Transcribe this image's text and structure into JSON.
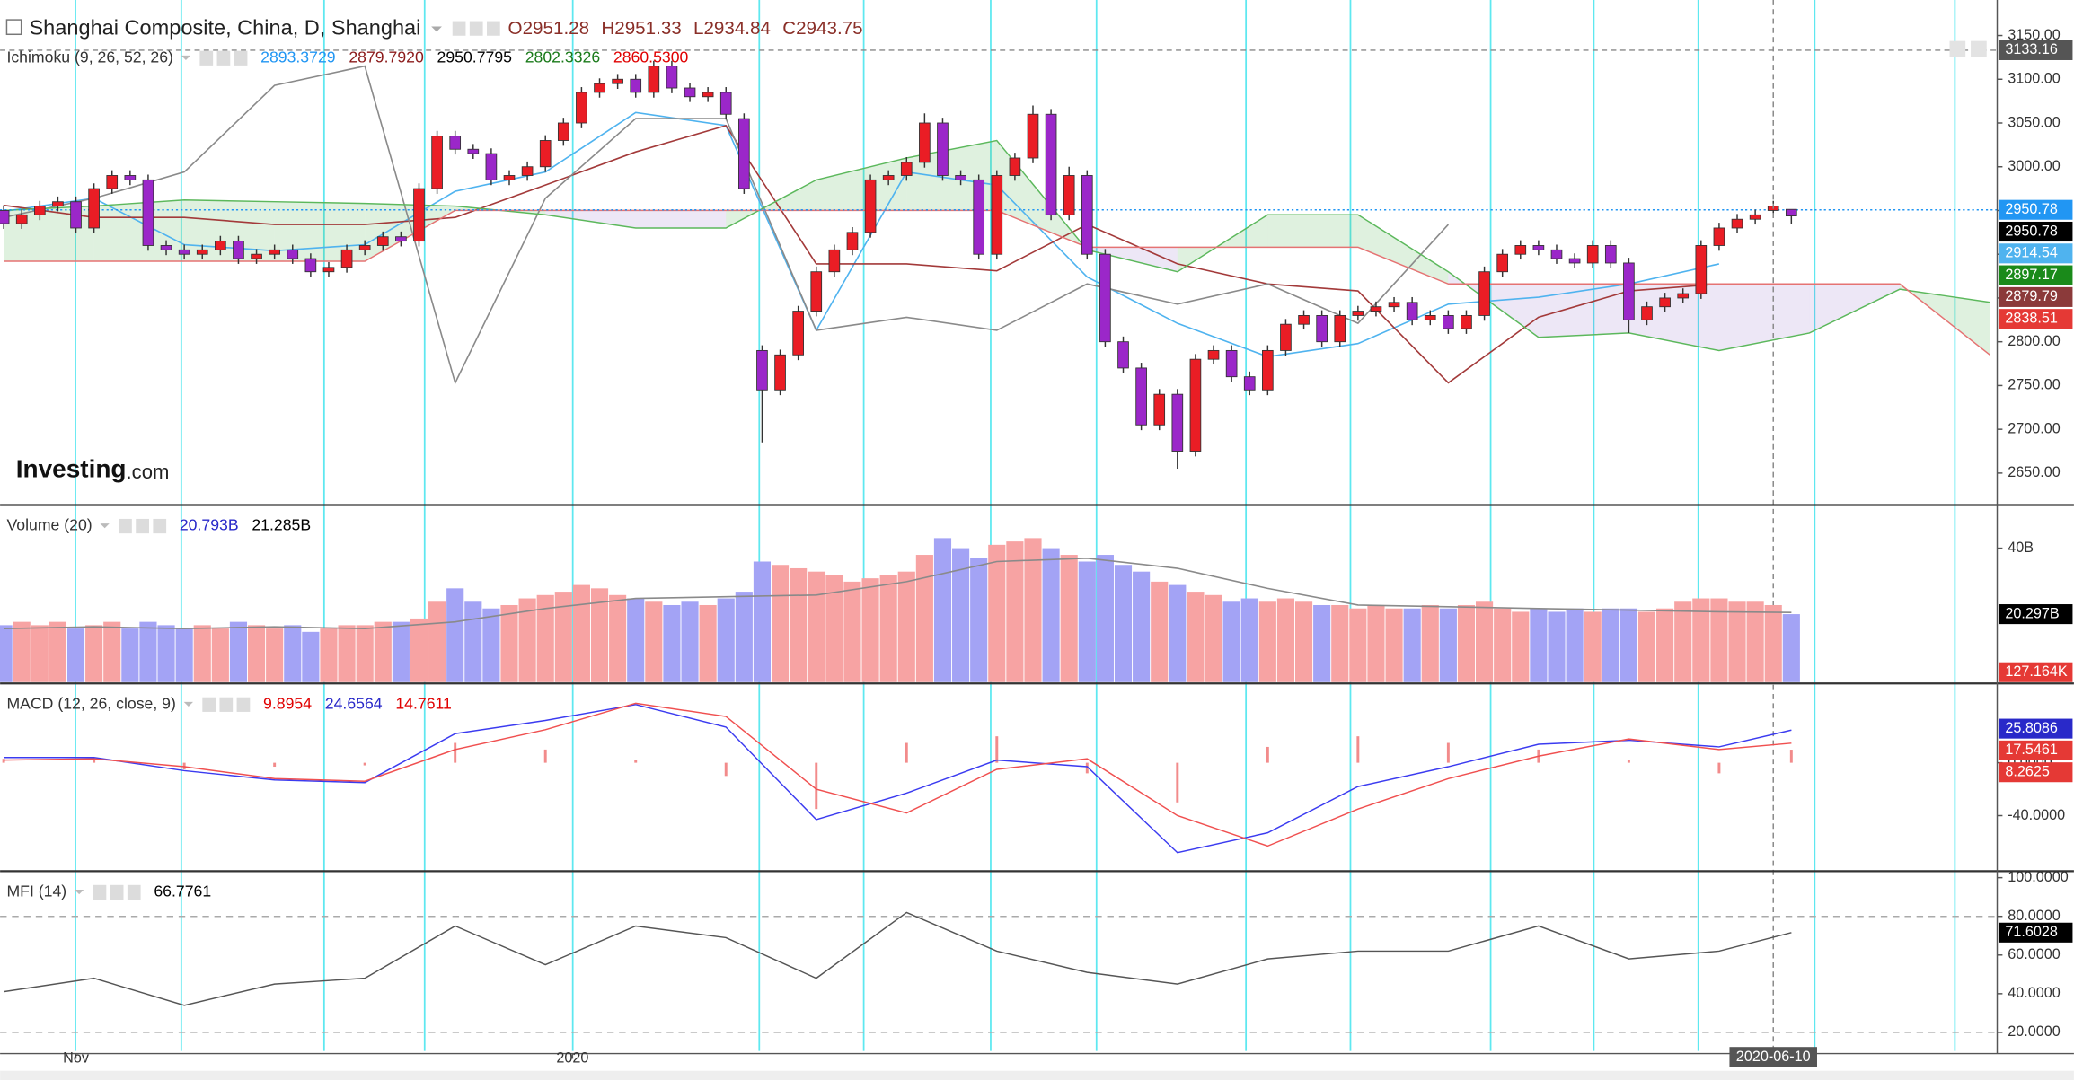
{
  "header": {
    "title": "Shanghai Composite, China, D, Shanghai",
    "ohlc": [
      "O2951.28",
      "H2951.33",
      "L2934.84",
      "C2943.75"
    ],
    "ohlc_color": "#8a2f28"
  },
  "logo": {
    "brand": "Investing",
    "suffix": ".com"
  },
  "xaxis": {
    "xlim": [
      -0.2,
      110.4
    ],
    "xticks": [
      {
        "value": 4,
        "label": "Nov"
      },
      {
        "value": 31.5,
        "label": "2020"
      }
    ]
  },
  "chart_data": [
    {
      "type": "candlestick",
      "name": "Ichimoku (9, 26, 52, 26)",
      "legend_values": [
        {
          "text": "2893.3729",
          "color": "#2196f3"
        },
        {
          "text": "2879.7920",
          "color": "#8b1a1a"
        },
        {
          "text": "2950.7795",
          "color": "#000000"
        },
        {
          "text": "2802.3326",
          "color": "#1a7a1a"
        },
        {
          "text": "2860.5300",
          "color": "#e00000"
        }
      ],
      "ylim": [
        2615,
        3183
      ],
      "yticks": [
        {
          "value": 2650,
          "label": "2650.00"
        },
        {
          "value": 2700,
          "label": "2700.00"
        },
        {
          "value": 2750,
          "label": "2750.00"
        },
        {
          "value": 2800,
          "label": "2800.00"
        },
        {
          "value": 2850,
          "label": "2850.00"
        },
        {
          "value": 2900,
          "label": "2900.00"
        },
        {
          "value": 2950,
          "label": "2950.00"
        },
        {
          "value": 3000,
          "label": "3000.00"
        },
        {
          "value": 3050,
          "label": "3050.00"
        },
        {
          "value": 3100,
          "label": "3100.00"
        },
        {
          "value": 3150,
          "label": "3150.00"
        }
      ],
      "up_color": "#ea1d25",
      "down_color": "#9b27c9",
      "open": [
        2950,
        2935,
        2945,
        2955,
        2960,
        2930,
        2975,
        2990,
        2985,
        2910,
        2905,
        2900,
        2905,
        2915,
        2895,
        2900,
        2905,
        2895,
        2880,
        2885,
        2905,
        2910,
        2920,
        2915,
        2975,
        3035,
        3020,
        3015,
        2985,
        2990,
        3000,
        3030,
        3050,
        3085,
        3095,
        3100,
        3085,
        3115,
        3090,
        3080,
        3085,
        3055,
        2790,
        2745,
        2785,
        2835,
        2880,
        2905,
        2925,
        2985,
        2990,
        3005,
        3050,
        2990,
        2985,
        2900,
        2990,
        3010,
        3060,
        2945,
        2990,
        2900,
        2800,
        2770,
        2705,
        2740,
        2675,
        2780,
        2790,
        2760,
        2745,
        2790,
        2820,
        2830,
        2800,
        2830,
        2835,
        2840,
        2845,
        2825,
        2830,
        2815,
        2830,
        2880,
        2900,
        2910,
        2905,
        2895,
        2890,
        2910,
        2890,
        2825,
        2840,
        2850,
        2855,
        2910,
        2930,
        2940,
        2950,
        2951.28
      ],
      "high": [
        2956,
        2951,
        2961,
        2966,
        2966,
        2981,
        2996,
        2996,
        2991,
        2916,
        2911,
        2911,
        2921,
        2921,
        2906,
        2911,
        2911,
        2901,
        2891,
        2911,
        2916,
        2926,
        2926,
        2981,
        3041,
        3041,
        3026,
        3021,
        2996,
        3006,
        3036,
        3056,
        3091,
        3101,
        3106,
        3106,
        3121,
        3121,
        3096,
        3091,
        3091,
        3061,
        2796,
        2791,
        2841,
        2886,
        2911,
        2931,
        2991,
        2996,
        3011,
        3061,
        3056,
        2996,
        2991,
        2996,
        3016,
        3070,
        3066,
        3000,
        2996,
        2906,
        2806,
        2776,
        2746,
        2746,
        2786,
        2796,
        2796,
        2766,
        2796,
        2826,
        2836,
        2836,
        2836,
        2841,
        2846,
        2851,
        2851,
        2836,
        2836,
        2836,
        2886,
        2906,
        2916,
        2916,
        2911,
        2901,
        2916,
        2916,
        2896,
        2846,
        2856,
        2861,
        2916,
        2936,
        2946,
        2951,
        2961,
        2951.33
      ],
      "low": [
        2929,
        2929,
        2939,
        2949,
        2924,
        2924,
        2969,
        2979,
        2904,
        2899,
        2894,
        2894,
        2899,
        2889,
        2889,
        2894,
        2889,
        2874,
        2874,
        2879,
        2899,
        2904,
        2909,
        2909,
        2969,
        3014,
        3009,
        2979,
        2979,
        2984,
        2994,
        3024,
        3044,
        3079,
        3089,
        3079,
        3079,
        3084,
        3074,
        3074,
        3054,
        2969,
        2685,
        2739,
        2779,
        2829,
        2874,
        2899,
        2919,
        2979,
        2984,
        2999,
        2984,
        2979,
        2894,
        2894,
        2984,
        3004,
        2939,
        2939,
        2894,
        2794,
        2764,
        2699,
        2699,
        2655,
        2669,
        2774,
        2754,
        2739,
        2739,
        2784,
        2814,
        2794,
        2794,
        2824,
        2829,
        2834,
        2819,
        2819,
        2809,
        2809,
        2824,
        2874,
        2894,
        2899,
        2889,
        2884,
        2884,
        2884,
        2810,
        2819,
        2834,
        2844,
        2849,
        2904,
        2924,
        2934,
        2944,
        2934.84
      ],
      "close": [
        2935,
        2945,
        2955,
        2960,
        2930,
        2975,
        2990,
        2985,
        2910,
        2905,
        2900,
        2905,
        2915,
        2895,
        2900,
        2905,
        2895,
        2880,
        2885,
        2905,
        2910,
        2920,
        2915,
        2975,
        3035,
        3020,
        3015,
        2985,
        2990,
        3000,
        3030,
        3050,
        3085,
        3095,
        3100,
        3085,
        3115,
        3090,
        3080,
        3085,
        3060,
        2975,
        2745,
        2785,
        2835,
        2880,
        2905,
        2925,
        2985,
        2990,
        3005,
        3050,
        2990,
        2985,
        2900,
        2990,
        3010,
        3060,
        2945,
        2990,
        2900,
        2800,
        2770,
        2705,
        2740,
        2675,
        2780,
        2790,
        2760,
        2745,
        2790,
        2820,
        2830,
        2800,
        2830,
        2835,
        2840,
        2845,
        2825,
        2830,
        2815,
        2830,
        2880,
        2900,
        2910,
        2905,
        2895,
        2890,
        2910,
        2890,
        2825,
        2840,
        2850,
        2855,
        2910,
        2930,
        2940,
        2945,
        2955,
        2943.75
      ],
      "ichimoku": {
        "x": [
          0,
          5,
          10,
          15,
          20,
          25,
          30,
          35,
          40,
          45,
          50,
          55,
          60,
          65,
          70,
          75,
          80,
          85,
          90,
          95,
          100,
          105,
          110
        ],
        "cloud_up_color": "#4caf50",
        "cloud_down_color": "#7e57c2",
        "series": [
          {
            "color": "#4fb3ef",
            "values": [
              2949,
              2964,
              2911,
              2904,
              2911,
              2972,
              2994,
              3062,
              3047,
              2813,
              2994,
              2979,
              2874,
              2821,
              2783,
              2798,
              2843,
              2851,
              2866,
              2889,
              null,
              null,
              null
            ]
          },
          {
            "color": "#a33a3a",
            "values": [
              2956,
              2942,
              2942,
              2934,
              2934,
              2942,
              2979,
              3017,
              3047,
              2889,
              2889,
              2881,
              2934,
              2889,
              2866,
              2858,
              2753,
              2828,
              2858,
              2866,
              null,
              null,
              null
            ]
          },
          {
            "color": "#8a8a8a",
            "values": [
              2942,
              2964,
              2994,
              3093,
              3115,
              2753,
              2964,
              3055,
              3055,
              2813,
              2828,
              2813,
              2866,
              2843,
              2866,
              2821,
              2934,
              null,
              null,
              null,
              null,
              null,
              null
            ]
          },
          {
            "color": "#5cb85c",
            "values": [
              2950,
              2955,
              2962,
              2960,
              2958,
              2955,
              2945,
              2930,
              2930,
              2985,
              3010,
              3030,
              2905,
              2880,
              2945,
              2945,
              2880,
              2805,
              2810,
              2790,
              2810,
              2860,
              2845
            ]
          },
          {
            "color": "#e57373",
            "values": [
              2892,
              2892,
              2892,
              2892,
              2892,
              2950,
              2950,
              2950,
              2950,
              2950,
              2950,
              2950,
              2908,
              2908,
              2908,
              2908,
              2866,
              2866,
              2866,
              2866,
              2866,
              2866,
              2785
            ]
          }
        ]
      },
      "price_labels": [
        {
          "value": 2950.78,
          "color": "#2196f3"
        },
        {
          "value": 2950.78,
          "color": "#000000"
        },
        {
          "value": 2914.54,
          "color": "#4fb3ef"
        },
        {
          "value": 2897.17,
          "color": "#1a8a1a"
        },
        {
          "value": 2879.79,
          "color": "#8b3a3a"
        },
        {
          "value": 2838.51,
          "color": "#e53935"
        }
      ],
      "crosshair": {
        "value": 3133.16,
        "x": 98,
        "x_label": "2020-06-10"
      }
    },
    {
      "type": "bar",
      "name": "Volume (20)",
      "legend_values": [
        {
          "text": "20.793B",
          "color": "#2929c9"
        },
        {
          "text": "21.285B",
          "color": "#000000"
        }
      ],
      "ylim": [
        0,
        52.5
      ],
      "yticks": [
        {
          "value": 40,
          "label": "40B"
        }
      ],
      "up_color": "#f7a3a3",
      "down_color": "#a3a3f5",
      "values": [
        17,
        18,
        17,
        18,
        16,
        17,
        18,
        16,
        18,
        17,
        16,
        17,
        16,
        18,
        17,
        16,
        17,
        15,
        16,
        17,
        17,
        18,
        18,
        19,
        24,
        28,
        24,
        22,
        23,
        25,
        26,
        27,
        29,
        28,
        26,
        25,
        24,
        23,
        24,
        23,
        25,
        27,
        36,
        35,
        34,
        33,
        32,
        30,
        31,
        32,
        33,
        38,
        43,
        40,
        37,
        41,
        42,
        43,
        40,
        38,
        36,
        38,
        35,
        33,
        30,
        29,
        27,
        26,
        24,
        25,
        24,
        25,
        24,
        23,
        23,
        22,
        23,
        22,
        22,
        23,
        22,
        23,
        24,
        22,
        21,
        22,
        21,
        22,
        21,
        22,
        22,
        21,
        22,
        24,
        25,
        25,
        24,
        24,
        23,
        20.3
      ],
      "ma": {
        "color": "#8a8a8a",
        "x": [
          0,
          5,
          10,
          15,
          20,
          25,
          30,
          35,
          40,
          45,
          50,
          55,
          60,
          65,
          70,
          75,
          80,
          85,
          90,
          95,
          99
        ],
        "values": [
          16,
          16.5,
          16,
          16.5,
          16,
          18,
          22,
          25,
          25.5,
          26,
          30,
          36,
          37,
          34,
          28,
          23,
          22.5,
          22,
          21.5,
          21,
          20.8
        ]
      },
      "axis_labels": [
        {
          "value": 20.297,
          "label": "20.297B",
          "color": "#000000"
        },
        {
          "value": 0.000127164,
          "label": "127.164K",
          "color": "#e53935"
        }
      ]
    },
    {
      "type": "line",
      "name": "MACD (12, 26, close, 9)",
      "legend_values": [
        {
          "text": "9.8954",
          "color": "#e00000"
        },
        {
          "text": "24.6564",
          "color": "#2929c9"
        },
        {
          "text": "14.7611",
          "color": "#e00000"
        }
      ],
      "ylim": [
        -81,
        59
      ],
      "yticks": [
        {
          "value": 0,
          "label": "0.0000"
        },
        {
          "value": -40,
          "label": "-40.0000"
        }
      ],
      "x": [
        0,
        5,
        10,
        15,
        20,
        25,
        30,
        35,
        40,
        45,
        50,
        55,
        60,
        65,
        70,
        75,
        80,
        85,
        90,
        95,
        99
      ],
      "series": [
        {
          "color": "#3b3bf0",
          "values": [
            4,
            4,
            -6,
            -13,
            -15,
            22,
            32,
            44,
            27,
            -43,
            -23,
            2,
            -3,
            -68,
            -53,
            -18,
            -3,
            14,
            17,
            12,
            24.6564
          ]
        },
        {
          "color": "#f05050",
          "values": [
            2,
            3,
            -3,
            -12,
            -14,
            10,
            25,
            45,
            35,
            -20,
            -38,
            -5,
            3,
            -40,
            -63,
            -35,
            -12,
            5,
            18,
            10,
            14.7611
          ]
        }
      ],
      "histogram": {
        "color": "#f28b8b",
        "values": [
          3,
          2,
          -5,
          -3,
          -2,
          15,
          10,
          2,
          -10,
          -35,
          15,
          20,
          -8,
          -30,
          12,
          20,
          15,
          10,
          2,
          -8,
          9.8954
        ]
      },
      "axis_labels": [
        {
          "value": 25.8086,
          "label": "25.8086",
          "color": "#2929c9"
        },
        {
          "value": 17.5461,
          "label": "17.5461",
          "color": "#e53935"
        },
        {
          "value": 8.2625,
          "label": "8.2625",
          "color": "#e53935"
        }
      ]
    },
    {
      "type": "line",
      "name": "MFI (14)",
      "legend_values": [
        {
          "text": "66.7761",
          "color": "#000000"
        }
      ],
      "ylim": [
        10.4,
        102.7
      ],
      "yticks": [
        {
          "value": 20,
          "label": "20.0000"
        },
        {
          "value": 40,
          "label": "40.0000"
        },
        {
          "value": 60,
          "label": "60.0000"
        },
        {
          "value": 80,
          "label": "80.0000"
        },
        {
          "value": 100,
          "label": "100.0000"
        }
      ],
      "bands": [
        80,
        20
      ],
      "x": [
        0,
        5,
        10,
        15,
        20,
        25,
        30,
        35,
        40,
        45,
        50,
        55,
        60,
        65,
        70,
        75,
        80,
        85,
        90,
        95,
        99
      ],
      "series": [
        {
          "color": "#555555",
          "values": [
            41,
            48,
            34,
            45,
            48,
            75,
            55,
            75,
            69,
            48,
            82,
            62,
            51,
            45,
            58,
            62,
            62,
            75,
            58,
            62,
            71.6028
          ]
        }
      ],
      "axis_labels": [
        {
          "value": 71.6028,
          "label": "71.6028",
          "color": "#000000"
        }
      ]
    }
  ]
}
